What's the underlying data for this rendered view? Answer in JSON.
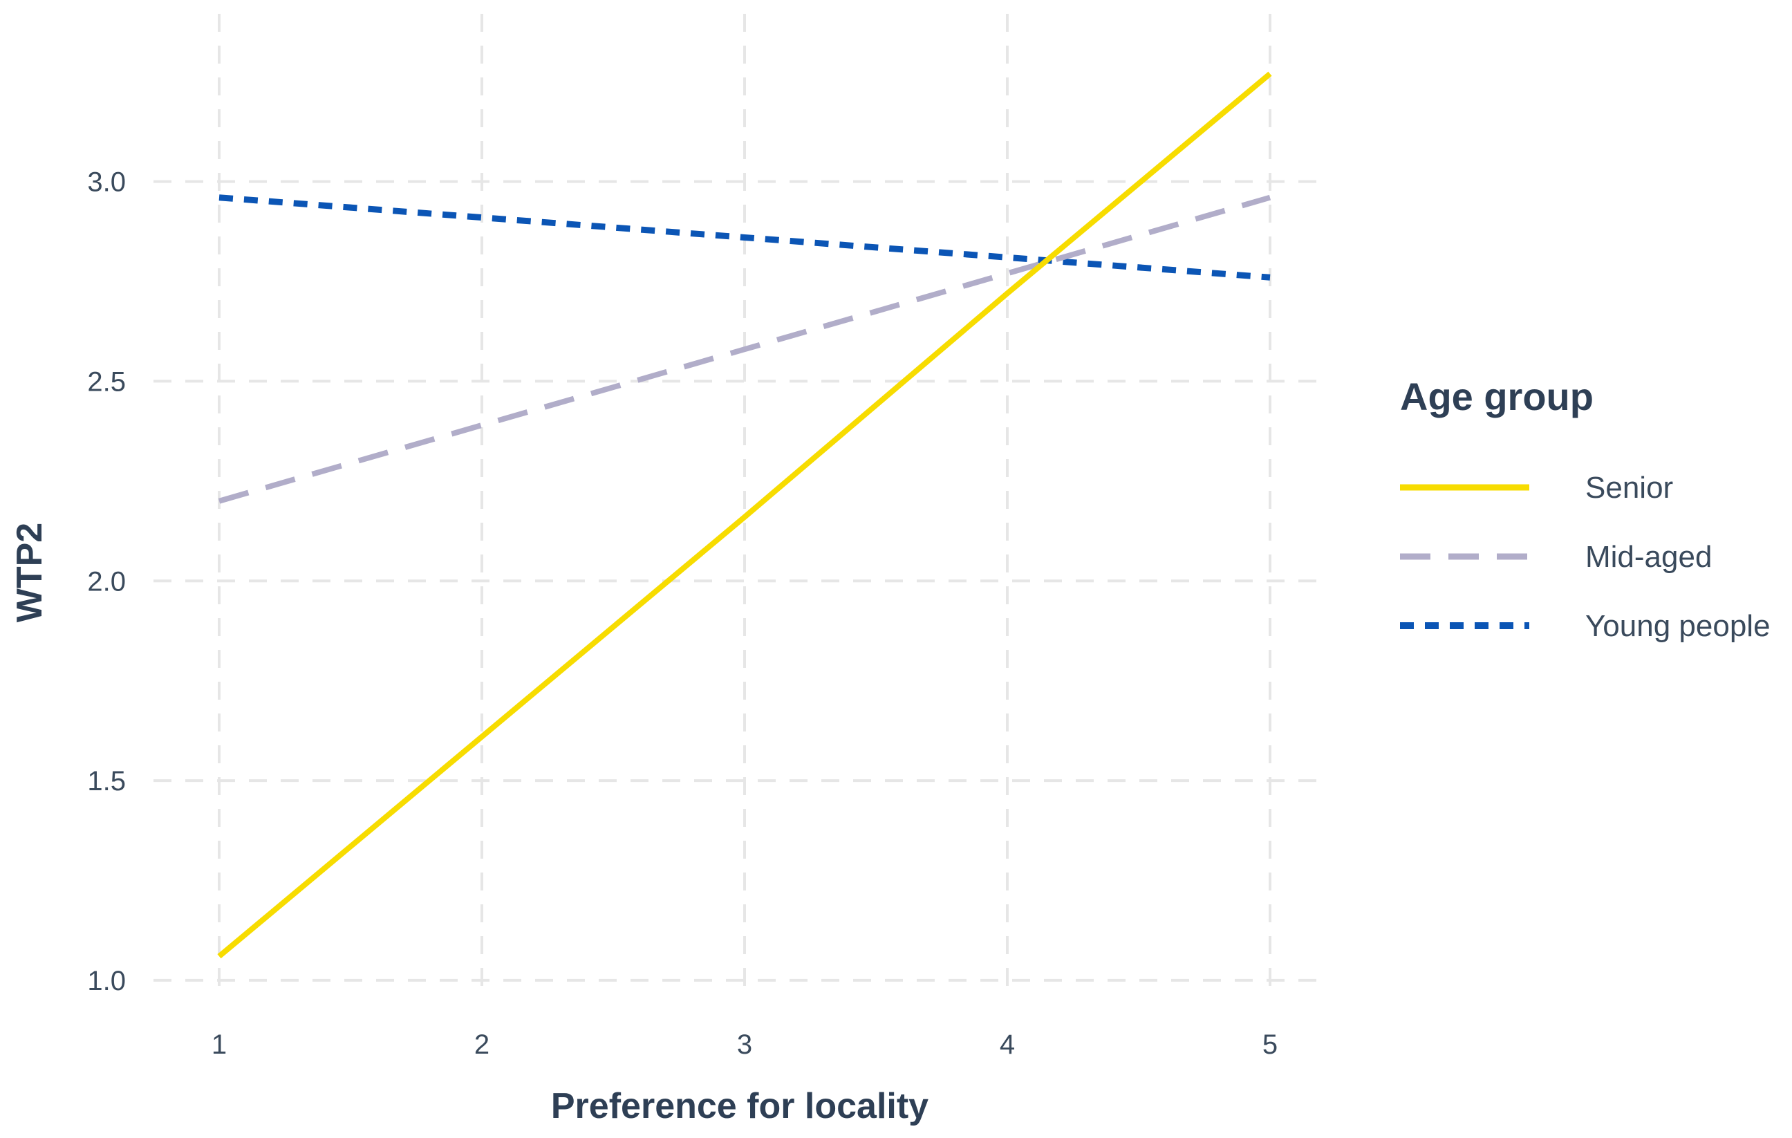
{
  "chart_data": {
    "type": "line",
    "xlabel": "Preference for locality",
    "ylabel": "WTP2",
    "x": [
      1,
      2,
      3,
      4,
      5
    ],
    "x_ticks": [
      "1",
      "2",
      "3",
      "4",
      "5"
    ],
    "xlim": [
      0.75,
      5.2
    ],
    "y_ticks": [
      "1.0",
      "1.5",
      "2.0",
      "2.5",
      "3.0"
    ],
    "y_tick_values": [
      1.0,
      1.5,
      2.0,
      2.5,
      3.0
    ],
    "ylim": [
      0.96,
      3.42
    ],
    "grid": true,
    "grid_style": "dashed",
    "legend": {
      "title": "Age group",
      "placement": "right"
    },
    "series": [
      {
        "name": "Senior",
        "color": "#f7dc00",
        "line_style": "solid",
        "values": [
          1.06,
          1.61,
          2.16,
          2.72,
          3.27
        ]
      },
      {
        "name": "Mid-aged",
        "color": "#b1adc9",
        "line_style": "dashed",
        "values": [
          2.2,
          2.39,
          2.58,
          2.77,
          2.96
        ]
      },
      {
        "name": "Young people",
        "color": "#0b55b5",
        "line_style": "dotted",
        "values": [
          2.96,
          2.91,
          2.86,
          2.81,
          2.76
        ]
      }
    ]
  }
}
